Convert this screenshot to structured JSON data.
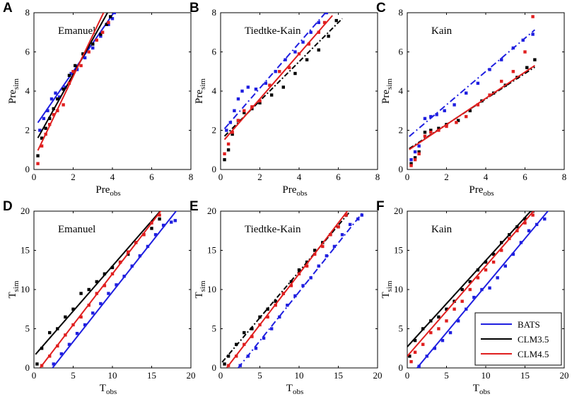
{
  "figure": {
    "series_names": [
      "BATS",
      "CLM3.5",
      "CLM4.5"
    ],
    "series_colors": [
      "#1f1fe0",
      "#000000",
      "#e01f1f"
    ]
  },
  "chart_data": [
    {
      "type": "scatter",
      "panel": "A",
      "title": "Emanuel",
      "xlabel": "Pre",
      "xlabel_sub": "obs",
      "ylabel": "Pre",
      "ylabel_sub": "sim",
      "xlim": [
        0,
        8
      ],
      "ylim": [
        0,
        8
      ],
      "xticks": [
        0,
        2,
        4,
        6,
        8
      ],
      "yticks": [
        0,
        2,
        4,
        6,
        8
      ],
      "series": [
        {
          "name": "BATS",
          "color": "#1f1fe0",
          "fit": [
            2.1,
            1.45
          ],
          "x_range": [
            0.2,
            4.2
          ],
          "x": [
            0.3,
            0.5,
            0.7,
            0.9,
            1.1,
            1.3,
            1.6,
            1.9,
            2.2,
            2.6,
            3.0,
            3.4,
            3.8,
            4.0,
            4.1
          ],
          "y": [
            2.0,
            2.6,
            3.0,
            3.6,
            3.9,
            3.7,
            4.2,
            4.9,
            5.1,
            5.7,
            6.2,
            6.8,
            7.4,
            7.7,
            8.0
          ]
        },
        {
          "name": "CLM3.5",
          "color": "#000000",
          "fit": [
            1.25,
            1.8
          ],
          "x_range": [
            0.2,
            4.0
          ],
          "x": [
            0.2,
            0.4,
            0.6,
            0.8,
            1.0,
            1.2,
            1.5,
            1.8,
            2.1,
            2.5,
            3.0,
            3.4,
            3.7,
            3.9
          ],
          "y": [
            0.7,
            1.6,
            2.1,
            2.6,
            3.1,
            3.6,
            4.1,
            4.8,
            5.3,
            5.9,
            6.4,
            6.9,
            7.4,
            7.8
          ]
        },
        {
          "name": "CLM4.5",
          "color": "#e01f1f",
          "fit": [
            0.55,
            2.1
          ],
          "x_range": [
            0.2,
            3.9
          ],
          "x": [
            0.2,
            0.4,
            0.6,
            0.8,
            1.0,
            1.2,
            1.5,
            1.8,
            2.0,
            2.4,
            2.8,
            3.2,
            3.5,
            3.8
          ],
          "y": [
            0.3,
            1.2,
            1.8,
            2.3,
            2.8,
            3.0,
            3.3,
            4.4,
            5.0,
            5.3,
            6.0,
            6.6,
            7.0,
            7.5
          ]
        }
      ]
    },
    {
      "type": "scatter",
      "panel": "B",
      "title": "Tiedtke-Kain",
      "xlabel": "Pre",
      "xlabel_sub": "obs",
      "ylabel": "Pre",
      "ylabel_sub": "sim",
      "xlim": [
        0,
        8
      ],
      "ylim": [
        0,
        8
      ],
      "xticks": [
        0,
        2,
        4,
        6,
        8
      ],
      "yticks": [
        0,
        2,
        4,
        6,
        8
      ],
      "series": [
        {
          "name": "BATS",
          "color": "#1f1fe0",
          "fit": [
            1.85,
            1.15
          ],
          "x_range": [
            0.2,
            5.5
          ],
          "x": [
            0.3,
            0.5,
            0.7,
            0.9,
            1.1,
            1.4,
            1.8,
            2.3,
            2.8,
            3.3,
            3.8,
            4.2,
            4.6,
            5.0,
            5.4
          ],
          "y": [
            2.0,
            2.4,
            3.0,
            3.6,
            4.0,
            4.2,
            4.1,
            4.4,
            5.0,
            5.6,
            6.0,
            6.5,
            7.0,
            7.5,
            8.0
          ]
        },
        {
          "name": "CLM3.5",
          "color": "#000000",
          "fit": [
            1.5,
            1.0
          ],
          "x_range": [
            0.2,
            6.2
          ],
          "x": [
            0.2,
            0.4,
            0.6,
            0.9,
            1.2,
            1.6,
            2.0,
            2.6,
            3.2,
            3.8,
            4.4,
            5.0,
            5.5,
            5.9
          ],
          "y": [
            0.5,
            1.0,
            1.8,
            2.5,
            2.9,
            3.1,
            3.4,
            3.8,
            4.2,
            4.9,
            5.6,
            6.1,
            6.8,
            7.6
          ]
        },
        {
          "name": "CLM4.5",
          "color": "#e01f1f",
          "fit": [
            1.3,
            1.15
          ],
          "x_range": [
            0.2,
            5.7
          ],
          "x": [
            0.2,
            0.4,
            0.6,
            0.9,
            1.2,
            1.6,
            2.0,
            2.5,
            3.0,
            3.5,
            4.0,
            4.5,
            5.0,
            5.3
          ],
          "y": [
            0.8,
            1.3,
            1.9,
            2.5,
            3.0,
            3.2,
            3.5,
            4.3,
            5.0,
            5.2,
            5.9,
            6.4,
            7.0,
            7.5
          ]
        }
      ]
    },
    {
      "type": "scatter",
      "panel": "C",
      "title": "Kain",
      "xlabel": "Pre",
      "xlabel_sub": "obs",
      "ylabel": "Pre",
      "ylabel_sub": "sim",
      "xlim": [
        0,
        8
      ],
      "ylim": [
        0,
        8
      ],
      "xticks": [
        0,
        2,
        4,
        6,
        8
      ],
      "yticks": [
        0,
        2,
        4,
        6,
        8
      ],
      "series": [
        {
          "name": "BATS",
          "color": "#1f1fe0",
          "fit": [
            1.6,
            0.85
          ],
          "x_range": [
            0.1,
            6.5
          ],
          "x": [
            0.2,
            0.4,
            0.6,
            0.9,
            1.2,
            1.5,
            1.9,
            2.4,
            3.0,
            3.6,
            4.2,
            4.8,
            5.4,
            5.9,
            6.4
          ],
          "y": [
            0.5,
            0.9,
            1.2,
            2.6,
            2.7,
            2.8,
            3.0,
            3.3,
            3.9,
            4.4,
            5.1,
            5.6,
            6.2,
            6.6,
            6.9
          ]
        },
        {
          "name": "CLM3.5",
          "color": "#000000",
          "fit": [
            1.0,
            0.65
          ],
          "x_range": [
            0.1,
            6.5
          ],
          "x": [
            0.2,
            0.4,
            0.6,
            0.9,
            1.2,
            1.6,
            2.0,
            2.6,
            3.2,
            3.8,
            4.4,
            5.0,
            5.6,
            6.1,
            6.5
          ],
          "y": [
            0.3,
            0.6,
            0.9,
            1.9,
            2.0,
            2.1,
            2.3,
            2.5,
            3.0,
            3.5,
            3.9,
            4.3,
            4.7,
            5.2,
            5.6
          ]
        },
        {
          "name": "CLM4.5",
          "color": "#e01f1f",
          "fit": [
            0.95,
            0.67
          ],
          "x_range": [
            0.1,
            6.5
          ],
          "x": [
            0.2,
            0.4,
            0.6,
            0.9,
            1.2,
            1.6,
            2.0,
            2.5,
            3.0,
            3.6,
            4.2,
            4.8,
            5.4,
            6.0,
            6.4
          ],
          "y": [
            0.2,
            0.5,
            0.8,
            1.7,
            1.9,
            2.0,
            2.2,
            2.4,
            2.7,
            3.3,
            3.8,
            4.5,
            5.0,
            6.0,
            7.8
          ]
        }
      ]
    },
    {
      "type": "scatter",
      "panel": "D",
      "title": "Emanuel",
      "xlabel": "T",
      "xlabel_sub": "obs",
      "ylabel": "T",
      "ylabel_sub": "sim",
      "xlim": [
        0,
        20
      ],
      "ylim": [
        0,
        20
      ],
      "xticks": [
        0,
        5,
        10,
        15,
        20
      ],
      "yticks": [
        0,
        5,
        10,
        15,
        20
      ],
      "series": [
        {
          "name": "BATS",
          "color": "#1f1fe0",
          "fit": [
            -3.0,
            1.27
          ],
          "x_range": [
            2.3,
            18.2
          ],
          "x": [
            2.5,
            3.5,
            4.5,
            5.5,
            6.5,
            7.5,
            8.5,
            9.5,
            10.5,
            11.5,
            12.5,
            13.5,
            14.5,
            15.5,
            16.5,
            17.5,
            18.0
          ],
          "y": [
            0.5,
            1.8,
            3.0,
            4.4,
            5.5,
            7.0,
            8.2,
            9.5,
            10.6,
            11.7,
            13.0,
            14.3,
            15.5,
            17.0,
            18.2,
            18.6,
            18.8
          ]
        },
        {
          "name": "CLM3.5",
          "color": "#000000",
          "fit": [
            1.5,
            1.15
          ],
          "x_range": [
            0.2,
            16.2
          ],
          "x": [
            0.4,
            1.0,
            2.0,
            3.0,
            4.0,
            5.0,
            6.0,
            7.0,
            8.0,
            9.0,
            10.0,
            11.0,
            12.0,
            13.0,
            14.0,
            15.0,
            16.0
          ],
          "y": [
            0.5,
            2.5,
            4.5,
            5.0,
            6.5,
            7.5,
            9.5,
            10.0,
            11.0,
            12.0,
            12.8,
            13.5,
            14.5,
            16.0,
            17.0,
            17.8,
            19.0
          ]
        },
        {
          "name": "CLM4.5",
          "color": "#e01f1f",
          "fit": [
            -1.0,
            1.3
          ],
          "x_range": [
            0.8,
            16.2
          ],
          "x": [
            1.0,
            2.0,
            3.0,
            4.0,
            5.0,
            6.0,
            7.0,
            8.0,
            9.0,
            10.0,
            11.0,
            12.0,
            13.0,
            14.0,
            15.0,
            16.0
          ],
          "y": [
            0.3,
            1.5,
            2.8,
            4.2,
            5.5,
            6.5,
            8.0,
            9.5,
            10.5,
            12.0,
            13.5,
            14.8,
            16.0,
            17.0,
            18.5,
            19.5
          ]
        }
      ]
    },
    {
      "type": "scatter",
      "panel": "E",
      "title": "Tiedtke-Kain",
      "xlabel": "T",
      "xlabel_sub": "obs",
      "ylabel": "T",
      "ylabel_sub": "sim",
      "xlim": [
        0,
        20
      ],
      "ylim": [
        0,
        20
      ],
      "xticks": [
        0,
        5,
        10,
        15,
        20
      ],
      "yticks": [
        0,
        5,
        10,
        15,
        20
      ],
      "series": [
        {
          "name": "BATS",
          "color": "#1f1fe0",
          "fit": [
            -2.8,
            1.25
          ],
          "x_range": [
            2.2,
            18.2
          ],
          "x": [
            2.5,
            3.5,
            4.5,
            5.5,
            6.5,
            7.5,
            8.5,
            9.5,
            10.5,
            11.5,
            12.5,
            13.5,
            14.5,
            15.5,
            16.5,
            17.5,
            18.0
          ],
          "y": [
            0.3,
            1.5,
            2.5,
            3.8,
            5.0,
            6.5,
            8.0,
            9.2,
            10.5,
            11.5,
            13.0,
            14.3,
            15.5,
            17.0,
            18.3,
            19.0,
            19.5
          ]
        },
        {
          "name": "CLM3.5",
          "color": "#000000",
          "fit": [
            0.5,
            1.18
          ],
          "x_range": [
            0.2,
            16.5
          ],
          "x": [
            0.5,
            1.0,
            2.0,
            3.0,
            4.0,
            5.0,
            6.0,
            7.0,
            8.0,
            9.0,
            10.0,
            11.0,
            12.0,
            13.0,
            14.0,
            15.0,
            16.0
          ],
          "y": [
            0.5,
            1.5,
            3.0,
            4.5,
            5.0,
            6.5,
            7.5,
            8.5,
            9.5,
            11.0,
            12.5,
            13.5,
            15.0,
            16.0,
            17.0,
            18.0,
            19.5
          ]
        },
        {
          "name": "CLM4.5",
          "color": "#e01f1f",
          "fit": [
            -1.0,
            1.3
          ],
          "x_range": [
            0.8,
            16.2
          ],
          "x": [
            1.0,
            2.0,
            3.0,
            4.0,
            5.0,
            6.0,
            7.0,
            8.0,
            9.0,
            10.0,
            11.0,
            12.0,
            13.0,
            14.0,
            15.0,
            16.0
          ],
          "y": [
            0.3,
            1.5,
            3.0,
            4.0,
            5.5,
            6.5,
            8.0,
            9.5,
            10.5,
            12.0,
            13.0,
            14.5,
            15.5,
            17.0,
            18.0,
            19.5
          ]
        }
      ]
    },
    {
      "type": "scatter",
      "panel": "F",
      "title": "Kain",
      "xlabel": "T",
      "xlabel_sub": "obs",
      "ylabel": "T",
      "ylabel_sub": "sim",
      "xlim": [
        0,
        20
      ],
      "ylim": [
        0,
        20
      ],
      "xticks": [
        0,
        5,
        10,
        15,
        20
      ],
      "yticks": [
        0,
        5,
        10,
        15,
        20
      ],
      "legend": "bottom-right",
      "series": [
        {
          "name": "BATS",
          "color": "#1f1fe0",
          "fit": [
            -1.5,
            1.2
          ],
          "x_range": [
            1.2,
            18.2
          ],
          "x": [
            1.5,
            2.5,
            3.5,
            4.5,
            5.5,
            6.5,
            7.5,
            8.5,
            9.5,
            10.5,
            11.5,
            12.5,
            13.5,
            14.5,
            15.5,
            16.5,
            17.5
          ],
          "y": [
            0.2,
            1.5,
            2.5,
            3.5,
            4.5,
            6.0,
            7.5,
            9.0,
            10.0,
            10.2,
            11.5,
            13.0,
            14.5,
            16.0,
            17.5,
            18.3,
            19.0
          ]
        },
        {
          "name": "CLM3.5",
          "color": "#000000",
          "fit": [
            2.7,
            1.1
          ],
          "x_range": [
            0.0,
            16.2
          ],
          "x": [
            0.3,
            1.0,
            2.0,
            3.0,
            4.0,
            5.0,
            6.0,
            7.0,
            8.0,
            9.0,
            10.0,
            11.0,
            12.0,
            13.0,
            14.0,
            15.0,
            16.0
          ],
          "y": [
            1.5,
            3.5,
            5.0,
            6.0,
            6.5,
            7.5,
            8.5,
            10.0,
            11.0,
            12.5,
            13.5,
            14.5,
            16.0,
            17.0,
            18.0,
            19.0,
            20.0
          ]
        },
        {
          "name": "CLM4.5",
          "color": "#e01f1f",
          "fit": [
            1.5,
            1.15
          ],
          "x_range": [
            0.0,
            16.2
          ],
          "x": [
            0.5,
            1.0,
            2.0,
            3.0,
            4.0,
            5.0,
            6.0,
            7.0,
            8.0,
            9.0,
            10.0,
            11.0,
            12.0,
            13.0,
            14.0,
            15.0,
            16.0
          ],
          "y": [
            0.8,
            2.0,
            3.0,
            4.5,
            5.0,
            6.0,
            7.5,
            8.5,
            10.0,
            11.5,
            12.5,
            13.5,
            15.0,
            16.5,
            17.5,
            18.5,
            19.5
          ]
        }
      ]
    }
  ]
}
